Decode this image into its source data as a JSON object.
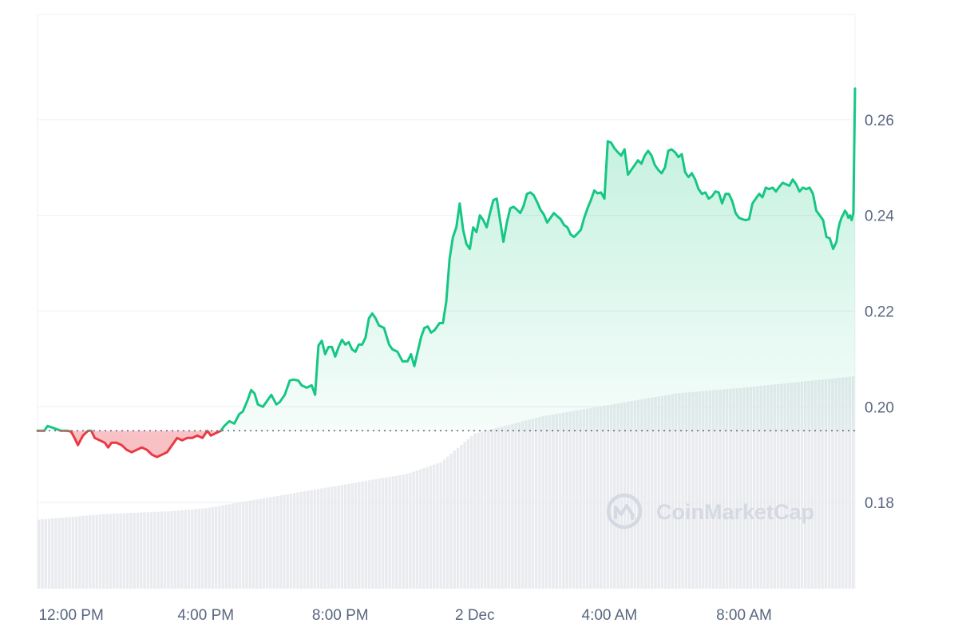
{
  "watermark": {
    "text": "CoinMarketCap",
    "icon": "coinmarketcap-logo-icon"
  },
  "colors": {
    "up": "#16c784",
    "down": "#ea3943",
    "up_fill": "#16c784",
    "down_fill": "#ea3943",
    "grid": "#eff2f5",
    "baseline": "#58667e",
    "volume": "#e6e8ec",
    "axis_text": "#58667e"
  },
  "chart_data": {
    "type": "area",
    "title": "",
    "xlabel": "",
    "ylabel": "",
    "x_range_hours": [
      11,
      35.3
    ],
    "ylim": [
      0.162,
      0.282
    ],
    "baseline_price": 0.195,
    "baseline_style": "dotted",
    "y_ticks": [
      0.18,
      0.2,
      0.22,
      0.24,
      0.26
    ],
    "y_tick_labels": [
      "0.18",
      "0.20",
      "0.22",
      "0.24",
      "0.26"
    ],
    "x_ticks": [
      {
        "hour": 12,
        "label": "12:00 PM"
      },
      {
        "hour": 16,
        "label": "4:00 PM"
      },
      {
        "hour": 20,
        "label": "8:00 PM"
      },
      {
        "hour": 24,
        "label": "2 Dec"
      },
      {
        "hour": 28,
        "label": "4:00 AM"
      },
      {
        "hour": 32,
        "label": "8:00 AM"
      }
    ],
    "grid": "horizontal",
    "series": [
      {
        "values": [
          [
            11.0,
            0.195
          ],
          [
            11.2,
            0.195
          ],
          [
            11.3,
            0.196
          ],
          [
            11.5,
            0.1955
          ],
          [
            11.7,
            0.195
          ],
          [
            11.9,
            0.195
          ],
          [
            12.0,
            0.1948
          ],
          [
            12.1,
            0.1935
          ],
          [
            12.2,
            0.192
          ],
          [
            12.35,
            0.194
          ],
          [
            12.5,
            0.195
          ],
          [
            12.6,
            0.195
          ],
          [
            12.7,
            0.1935
          ],
          [
            12.85,
            0.193
          ],
          [
            13.0,
            0.1925
          ],
          [
            13.1,
            0.1915
          ],
          [
            13.2,
            0.1925
          ],
          [
            13.35,
            0.1925
          ],
          [
            13.5,
            0.192
          ],
          [
            13.65,
            0.191
          ],
          [
            13.8,
            0.1905
          ],
          [
            13.95,
            0.191
          ],
          [
            14.1,
            0.1915
          ],
          [
            14.25,
            0.191
          ],
          [
            14.4,
            0.19
          ],
          [
            14.55,
            0.1895
          ],
          [
            14.7,
            0.19
          ],
          [
            14.85,
            0.1905
          ],
          [
            15.0,
            0.192
          ],
          [
            15.15,
            0.1935
          ],
          [
            15.3,
            0.193
          ],
          [
            15.45,
            0.1935
          ],
          [
            15.6,
            0.1935
          ],
          [
            15.75,
            0.194
          ],
          [
            15.9,
            0.1935
          ],
          [
            16.05,
            0.195
          ],
          [
            16.15,
            0.194
          ],
          [
            16.3,
            0.1945
          ],
          [
            16.45,
            0.195
          ],
          [
            16.55,
            0.196
          ],
          [
            16.7,
            0.197
          ],
          [
            16.85,
            0.1965
          ],
          [
            17.0,
            0.1985
          ],
          [
            17.1,
            0.199
          ],
          [
            17.25,
            0.2015
          ],
          [
            17.35,
            0.2035
          ],
          [
            17.45,
            0.2028
          ],
          [
            17.55,
            0.2005
          ],
          [
            17.7,
            0.2
          ],
          [
            17.85,
            0.2015
          ],
          [
            17.95,
            0.2025
          ],
          [
            18.1,
            0.2005
          ],
          [
            18.2,
            0.201
          ],
          [
            18.35,
            0.2025
          ],
          [
            18.5,
            0.2055
          ],
          [
            18.6,
            0.2057
          ],
          [
            18.75,
            0.2055
          ],
          [
            18.85,
            0.2045
          ],
          [
            19.0,
            0.204
          ],
          [
            19.15,
            0.2045
          ],
          [
            19.25,
            0.2025
          ],
          [
            19.35,
            0.2128
          ],
          [
            19.45,
            0.2138
          ],
          [
            19.55,
            0.211
          ],
          [
            19.65,
            0.2125
          ],
          [
            19.75,
            0.2125
          ],
          [
            19.85,
            0.2105
          ],
          [
            19.95,
            0.2125
          ],
          [
            20.05,
            0.214
          ],
          [
            20.15,
            0.213
          ],
          [
            20.25,
            0.2135
          ],
          [
            20.35,
            0.212
          ],
          [
            20.45,
            0.2115
          ],
          [
            20.55,
            0.213
          ],
          [
            20.65,
            0.213
          ],
          [
            20.75,
            0.2145
          ],
          [
            20.85,
            0.2185
          ],
          [
            20.95,
            0.2195
          ],
          [
            21.05,
            0.2185
          ],
          [
            21.15,
            0.217
          ],
          [
            21.3,
            0.2165
          ],
          [
            21.45,
            0.213
          ],
          [
            21.55,
            0.212
          ],
          [
            21.7,
            0.2115
          ],
          [
            21.85,
            0.2095
          ],
          [
            22.0,
            0.2095
          ],
          [
            22.1,
            0.211
          ],
          [
            22.2,
            0.2085
          ],
          [
            22.3,
            0.2115
          ],
          [
            22.4,
            0.2145
          ],
          [
            22.5,
            0.2165
          ],
          [
            22.6,
            0.2168
          ],
          [
            22.7,
            0.2155
          ],
          [
            22.8,
            0.216
          ],
          [
            22.95,
            0.2175
          ],
          [
            23.05,
            0.2175
          ],
          [
            23.15,
            0.222
          ],
          [
            23.25,
            0.231
          ],
          [
            23.35,
            0.2355
          ],
          [
            23.45,
            0.2375
          ],
          [
            23.55,
            0.2425
          ],
          [
            23.65,
            0.237
          ],
          [
            23.75,
            0.234
          ],
          [
            23.85,
            0.233
          ],
          [
            23.95,
            0.2375
          ],
          [
            24.05,
            0.2365
          ],
          [
            24.15,
            0.24
          ],
          [
            24.25,
            0.239
          ],
          [
            24.35,
            0.2375
          ],
          [
            24.45,
            0.2405
          ],
          [
            24.55,
            0.2432
          ],
          [
            24.65,
            0.2435
          ],
          [
            24.75,
            0.239
          ],
          [
            24.85,
            0.2345
          ],
          [
            24.95,
            0.2385
          ],
          [
            25.05,
            0.2415
          ],
          [
            25.15,
            0.2418
          ],
          [
            25.25,
            0.2412
          ],
          [
            25.35,
            0.2405
          ],
          [
            25.45,
            0.242
          ],
          [
            25.55,
            0.2445
          ],
          [
            25.65,
            0.2448
          ],
          [
            25.75,
            0.2442
          ],
          [
            25.85,
            0.2428
          ],
          [
            25.95,
            0.2412
          ],
          [
            26.05,
            0.2402
          ],
          [
            26.15,
            0.2385
          ],
          [
            26.25,
            0.2395
          ],
          [
            26.35,
            0.2405
          ],
          [
            26.45,
            0.2398
          ],
          [
            26.55,
            0.2392
          ],
          [
            26.65,
            0.238
          ],
          [
            26.75,
            0.2375
          ],
          [
            26.85,
            0.236
          ],
          [
            26.95,
            0.2355
          ],
          [
            27.05,
            0.2362
          ],
          [
            27.15,
            0.237
          ],
          [
            27.25,
            0.2395
          ],
          [
            27.35,
            0.2415
          ],
          [
            27.45,
            0.2432
          ],
          [
            27.55,
            0.2452
          ],
          [
            27.65,
            0.2446
          ],
          [
            27.75,
            0.2448
          ],
          [
            27.85,
            0.2435
          ],
          [
            27.95,
            0.2555
          ],
          [
            28.05,
            0.2552
          ],
          [
            28.15,
            0.254
          ],
          [
            28.25,
            0.2532
          ],
          [
            28.35,
            0.2525
          ],
          [
            28.45,
            0.2538
          ],
          [
            28.55,
            0.2485
          ],
          [
            28.65,
            0.2495
          ],
          [
            28.75,
            0.2505
          ],
          [
            28.85,
            0.2515
          ],
          [
            28.95,
            0.2508
          ],
          [
            29.05,
            0.2525
          ],
          [
            29.15,
            0.2535
          ],
          [
            29.25,
            0.2525
          ],
          [
            29.35,
            0.2505
          ],
          [
            29.45,
            0.2495
          ],
          [
            29.55,
            0.2488
          ],
          [
            29.65,
            0.25
          ],
          [
            29.75,
            0.2535
          ],
          [
            29.85,
            0.2538
          ],
          [
            29.95,
            0.2532
          ],
          [
            30.05,
            0.2522
          ],
          [
            30.15,
            0.2528
          ],
          [
            30.25,
            0.249
          ],
          [
            30.35,
            0.248
          ],
          [
            30.45,
            0.2488
          ],
          [
            30.55,
            0.2475
          ],
          [
            30.65,
            0.2455
          ],
          [
            30.75,
            0.2445
          ],
          [
            30.85,
            0.2448
          ],
          [
            30.95,
            0.2435
          ],
          [
            31.05,
            0.244
          ],
          [
            31.15,
            0.245
          ],
          [
            31.25,
            0.2448
          ],
          [
            31.35,
            0.2425
          ],
          [
            31.45,
            0.2445
          ],
          [
            31.55,
            0.2445
          ],
          [
            31.65,
            0.243
          ],
          [
            31.75,
            0.2405
          ],
          [
            31.85,
            0.2395
          ],
          [
            31.95,
            0.2392
          ],
          [
            32.05,
            0.239
          ],
          [
            32.15,
            0.2392
          ],
          [
            32.25,
            0.2425
          ],
          [
            32.35,
            0.2435
          ],
          [
            32.45,
            0.2445
          ],
          [
            32.55,
            0.2438
          ],
          [
            32.65,
            0.2458
          ],
          [
            32.75,
            0.2455
          ],
          [
            32.85,
            0.2458
          ],
          [
            32.95,
            0.245
          ],
          [
            33.05,
            0.246
          ],
          [
            33.15,
            0.2468
          ],
          [
            33.25,
            0.2465
          ],
          [
            33.35,
            0.2462
          ],
          [
            33.45,
            0.2475
          ],
          [
            33.55,
            0.2465
          ],
          [
            33.65,
            0.245
          ],
          [
            33.75,
            0.2458
          ],
          [
            33.85,
            0.2455
          ],
          [
            33.95,
            0.2458
          ],
          [
            34.05,
            0.2445
          ],
          [
            34.15,
            0.241
          ],
          [
            34.25,
            0.24
          ],
          [
            34.35,
            0.239
          ],
          [
            34.45,
            0.2355
          ],
          [
            34.55,
            0.2352
          ],
          [
            34.65,
            0.233
          ],
          [
            34.75,
            0.2345
          ],
          [
            34.8,
            0.237
          ],
          [
            34.85,
            0.2385
          ],
          [
            34.9,
            0.2395
          ],
          [
            34.95,
            0.2402
          ],
          [
            35.0,
            0.241
          ],
          [
            35.05,
            0.2405
          ],
          [
            35.1,
            0.2395
          ],
          [
            35.15,
            0.24
          ],
          [
            35.2,
            0.239
          ],
          [
            35.25,
            0.2405
          ],
          [
            35.3,
            0.2665
          ]
        ]
      }
    ],
    "volume_relative": [
      [
        11.0,
        0.12
      ],
      [
        13.0,
        0.13
      ],
      [
        15.0,
        0.135
      ],
      [
        16.0,
        0.14
      ],
      [
        18.0,
        0.16
      ],
      [
        20.0,
        0.18
      ],
      [
        22.0,
        0.2
      ],
      [
        23.0,
        0.22
      ],
      [
        24.0,
        0.27
      ],
      [
        26.0,
        0.3
      ],
      [
        28.0,
        0.32
      ],
      [
        30.0,
        0.34
      ],
      [
        32.0,
        0.35
      ],
      [
        35.3,
        0.37
      ]
    ]
  }
}
